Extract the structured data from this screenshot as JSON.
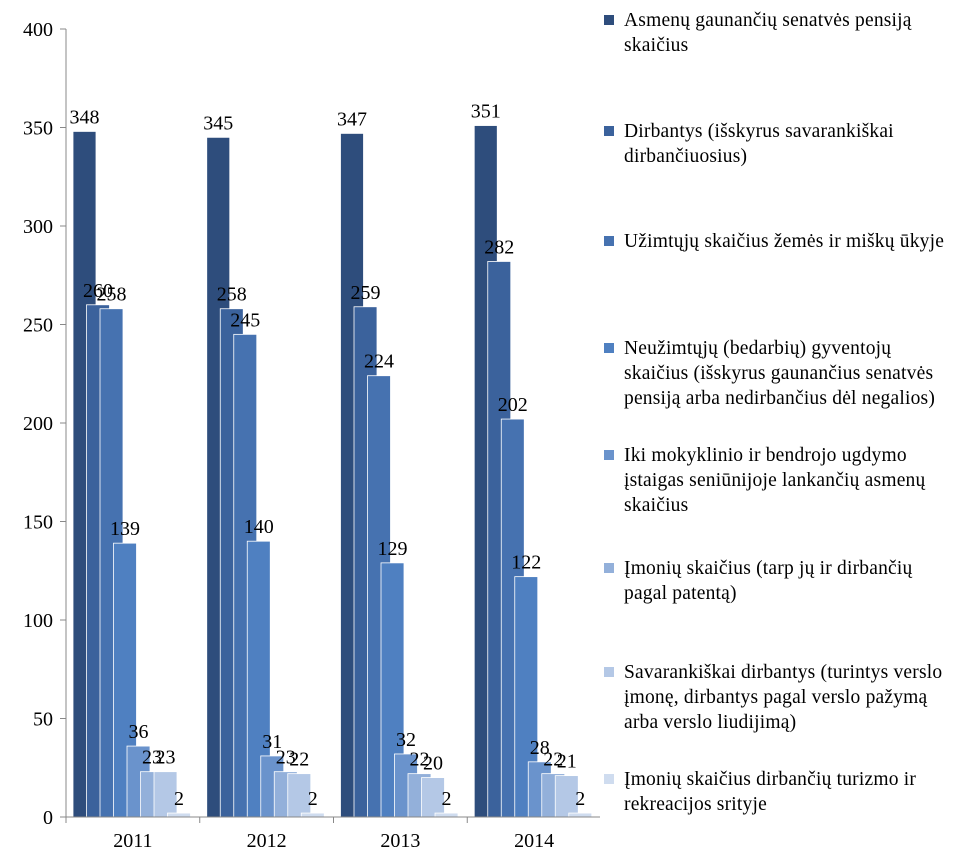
{
  "chart_data": {
    "type": "bar",
    "categories": [
      "2011",
      "2012",
      "2013",
      "2014"
    ],
    "ylim": [
      0,
      400
    ],
    "yticks": [
      0,
      50,
      100,
      150,
      200,
      250,
      300,
      350,
      400
    ],
    "grid": false,
    "legend_position": "right",
    "series": [
      {
        "name": "Asmenų gaunančių senatvės pensiją skaičius",
        "color": "#2e4d7c",
        "values": [
          348,
          345,
          347,
          351
        ]
      },
      {
        "name": "Dirbantys (išskyrus savarankiškai dirbančiuosius)",
        "color": "#3b629c",
        "values": [
          260,
          258,
          259,
          282
        ]
      },
      {
        "name": "Užimtųjų skaičius žemės ir miškų ūkyje",
        "color": "#4672b0",
        "values": [
          258,
          245,
          224,
          202
        ]
      },
      {
        "name": "Neužimtųjų (bedarbių) gyventojų skaičius (išskyrus gaunančius senatvės pensiją arba nedirbančius dėl negalios)",
        "color": "#4f80c1",
        "values": [
          139,
          140,
          129,
          122
        ]
      },
      {
        "name": "Iki mokyklinio ir bendrojo ugdymo įstaigas seniūnijoje lankančių asmenų skaičius",
        "color": "#6a93cc",
        "values": [
          36,
          31,
          32,
          28
        ]
      },
      {
        "name": "Įmonių skaičius (tarp jų ir dirbančių pagal patentą)",
        "color": "#93b0da",
        "values": [
          23,
          23,
          22,
          22
        ]
      },
      {
        "name": "Savarankiškai dirbantys (turintys verslo įmonę, dirbantys pagal verslo pažymą arba verslo liudijimą)",
        "color": "#b4c8e6",
        "values": [
          23,
          22,
          20,
          21
        ]
      },
      {
        "name": "Įmonių skaičius dirbančių turizmo ir rekreacijos srityje",
        "color": "#cfdcef",
        "values": [
          2,
          2,
          2,
          2
        ]
      }
    ]
  },
  "legend": {
    "items": [
      {
        "label": "Asmenų gaunančių senatvės pensiją skaičius",
        "color": "#2e4d7c"
      },
      {
        "label": "Dirbantys (išskyrus savarankiškai dirbančiuosius)",
        "color": "#3b629c"
      },
      {
        "label": "Užimtųjų skaičius žemės ir miškų ūkyje",
        "color": "#4672b0"
      },
      {
        "label": "Neužimtųjų (bedarbių) gyventojų skaičius (išskyrus gaunančius senatvės pensiją arba nedirbančius dėl negalios)",
        "color": "#4f80c1"
      },
      {
        "label": "Iki mokyklinio ir bendrojo ugdymo įstaigas seniūnijoje lankančių asmenų skaičius",
        "color": "#6a93cc"
      },
      {
        "label": "Įmonių skaičius (tarp jų ir dirbančių pagal patentą)",
        "color": "#93b0da"
      },
      {
        "label": "Savarankiškai dirbantys (turintys verslo įmonę, dirbantys pagal verslo pažymą arba verslo liudijimą)",
        "color": "#b4c8e6"
      },
      {
        "label": "Įmonių skaičius dirbančių turizmo ir rekreacijos srityje",
        "color": "#cfdcef"
      }
    ]
  }
}
